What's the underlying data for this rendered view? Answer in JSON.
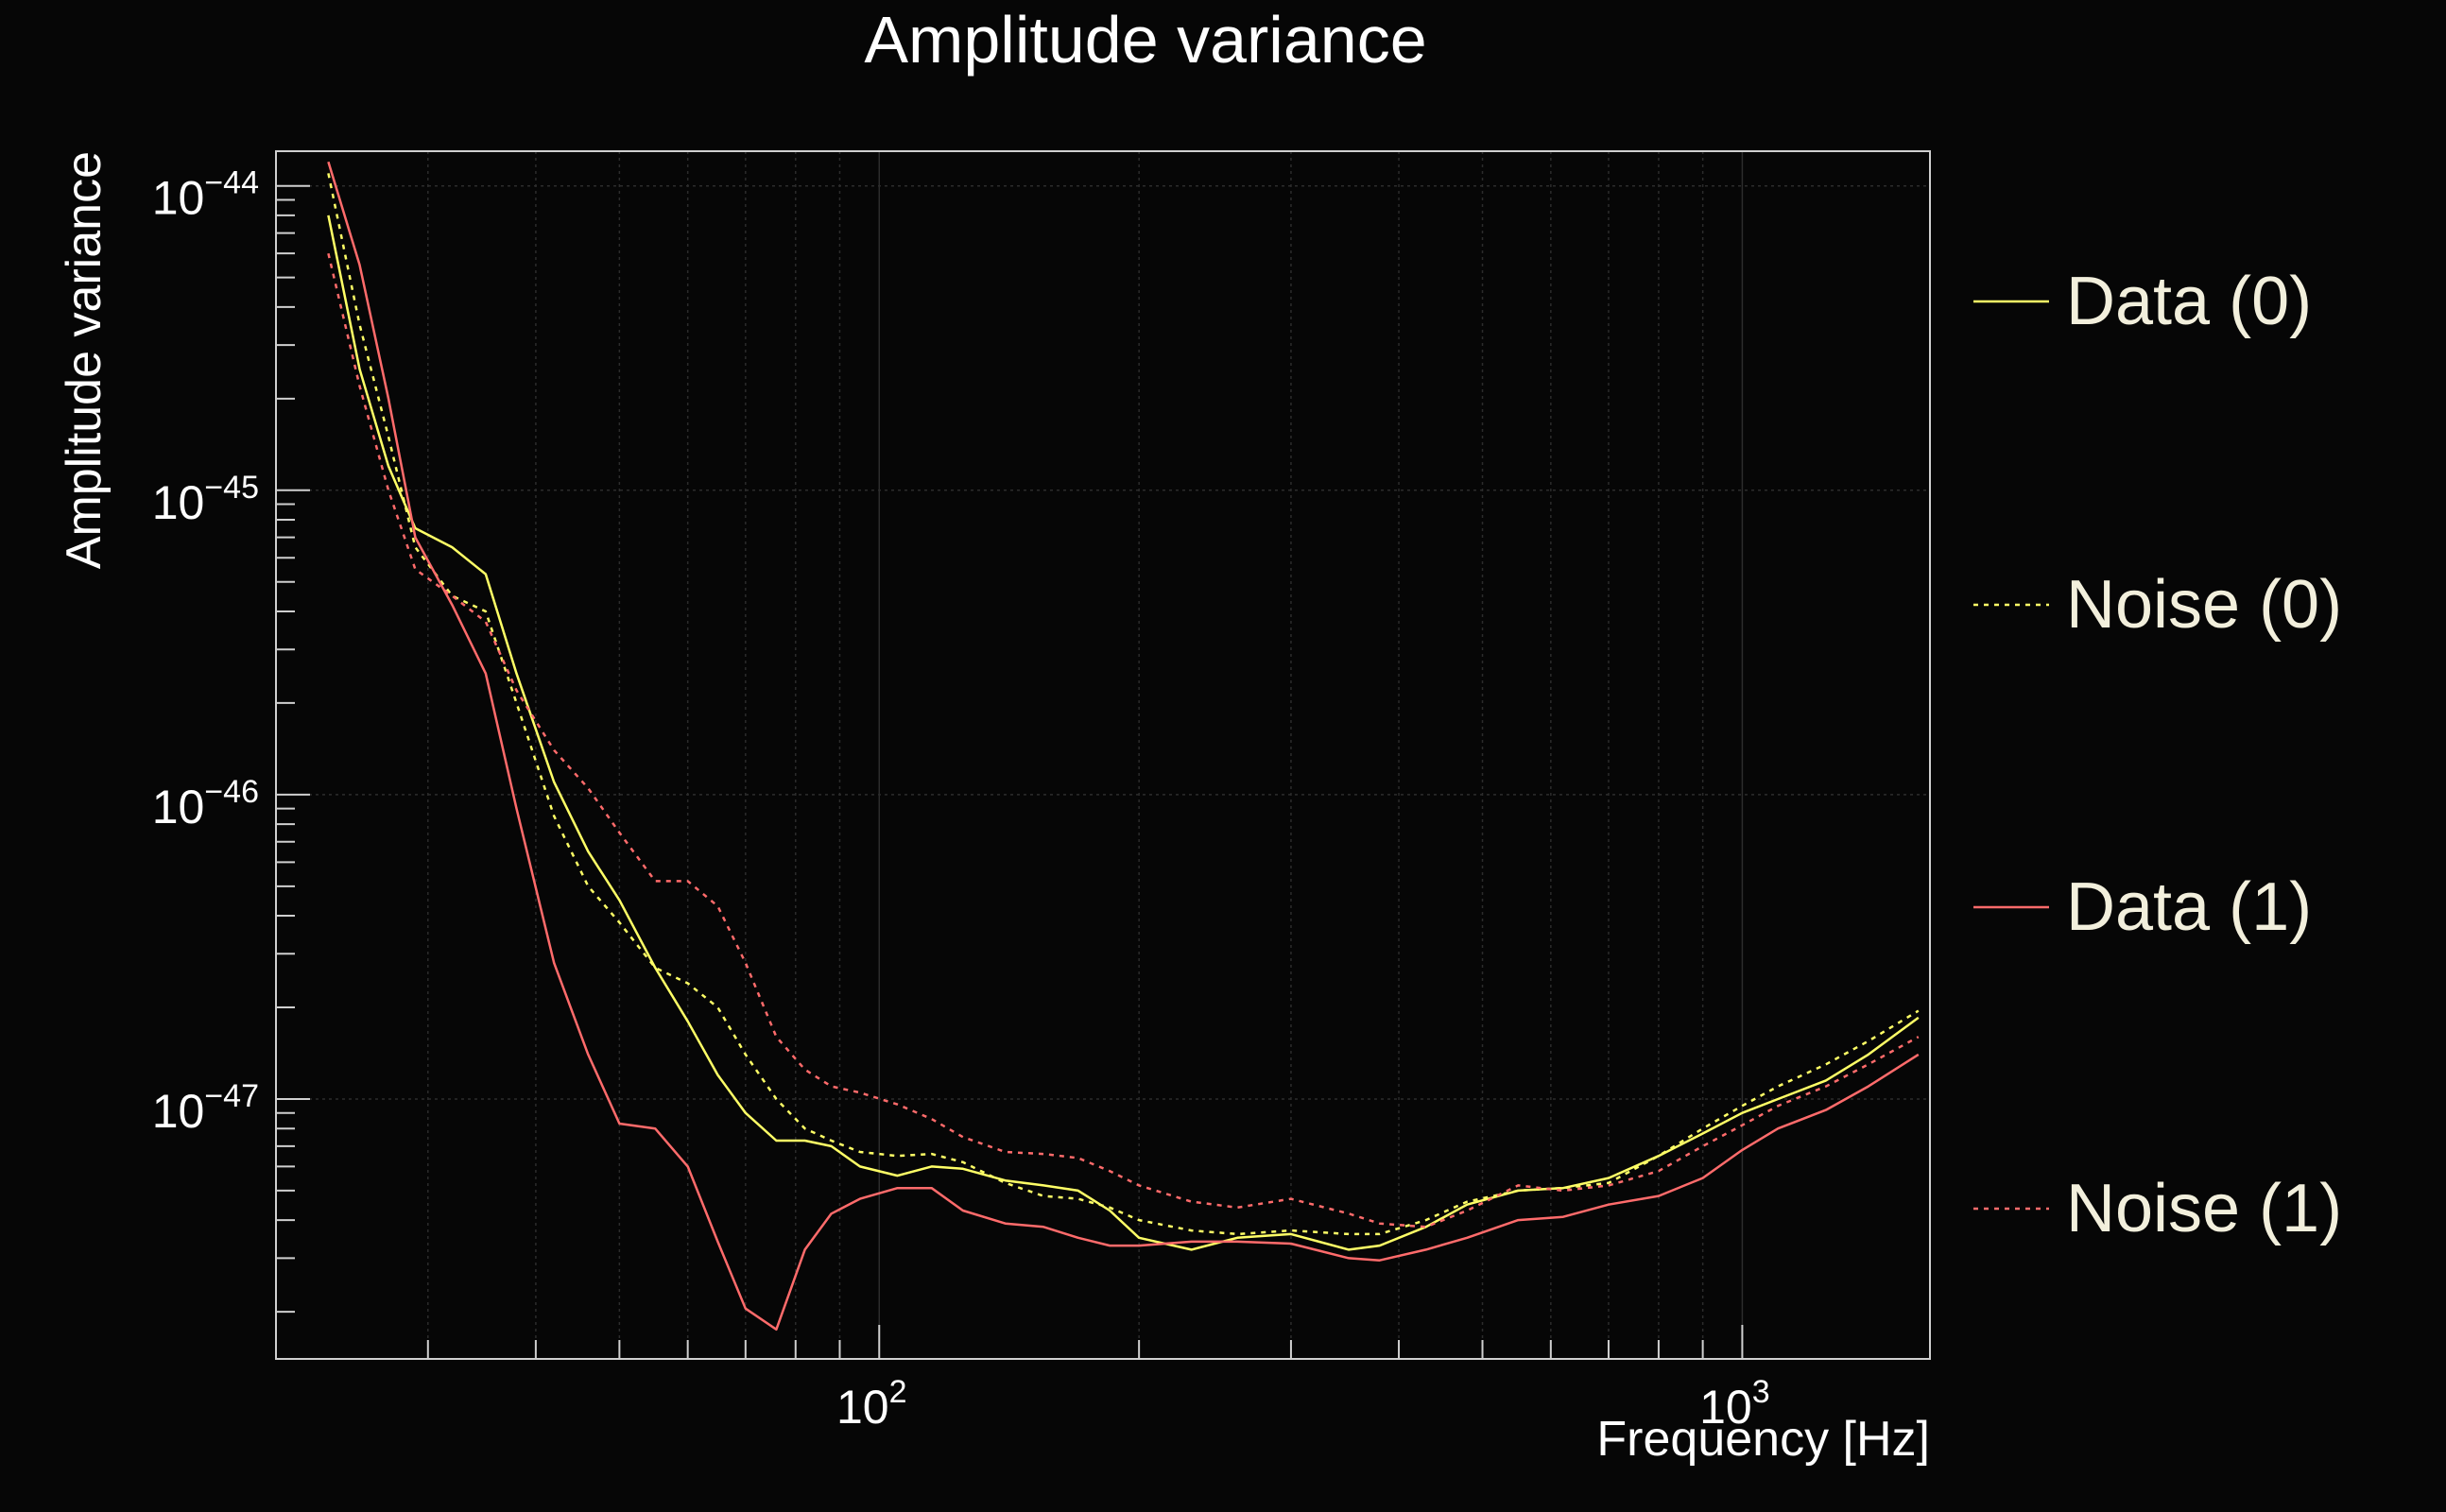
{
  "chart_data": {
    "type": "line",
    "title": "Amplitude variance",
    "xlabel": "Frequency [Hz]",
    "ylabel": "Amplitude variance",
    "x_scale": "log",
    "y_scale": "log",
    "xlim": [
      20,
      1650
    ],
    "ylim": [
      1.4e-48,
      1.3e-44
    ],
    "grid": true,
    "legend_position": "right",
    "x_ticks": [
      {
        "value": 100,
        "base": "10",
        "exp": "2"
      },
      {
        "value": 1000,
        "base": "10",
        "exp": "3"
      }
    ],
    "y_ticks": [
      {
        "value": 1e-47,
        "base": "10",
        "exp": "−47"
      },
      {
        "value": 1e-46,
        "base": "10",
        "exp": "−46"
      },
      {
        "value": 1e-45,
        "base": "10",
        "exp": "−45"
      },
      {
        "value": 1e-44,
        "base": "10",
        "exp": "−44"
      }
    ],
    "background_color": "#060606",
    "series": [
      {
        "name": "Data (0)",
        "color": "#ffff66",
        "dash": "solid",
        "x": [
          23,
          25,
          27,
          29,
          32,
          35,
          38,
          42,
          46,
          50,
          55,
          60,
          65,
          70,
          76,
          82,
          88,
          95,
          105,
          115,
          125,
          140,
          155,
          170,
          185,
          200,
          230,
          260,
          300,
          350,
          380,
          430,
          480,
          550,
          620,
          700,
          800,
          900,
          1000,
          1100,
          1250,
          1400,
          1600
        ],
        "y": [
          8e-45,
          2.5e-45,
          1.2e-45,
          7.5e-46,
          6.5e-46,
          5.3e-46,
          2.5e-46,
          1.1e-46,
          6.5e-47,
          4.5e-47,
          2.7e-47,
          1.8e-47,
          1.2e-47,
          9e-48,
          7.3e-48,
          7.3e-48,
          7e-48,
          6e-48,
          5.6e-48,
          6e-48,
          5.9e-48,
          5.4e-48,
          5.2e-48,
          5e-48,
          4.3e-48,
          3.5e-48,
          3.2e-48,
          3.5e-48,
          3.6e-48,
          3.2e-48,
          3.3e-48,
          3.8e-48,
          4.5e-48,
          5e-48,
          5.1e-48,
          5.5e-48,
          6.5e-48,
          7.7e-48,
          9e-48,
          1e-47,
          1.15e-47,
          1.4e-47,
          1.85e-47
        ]
      },
      {
        "name": "Noise (0)",
        "color": "#ffff66",
        "dash": "dotted",
        "x": [
          23,
          25,
          27,
          29,
          32,
          35,
          38,
          42,
          46,
          50,
          55,
          60,
          65,
          70,
          76,
          82,
          88,
          95,
          105,
          115,
          125,
          140,
          155,
          170,
          185,
          200,
          230,
          260,
          300,
          350,
          380,
          430,
          480,
          550,
          620,
          700,
          800,
          900,
          1000,
          1100,
          1250,
          1400,
          1600
        ],
        "y": [
          1.1e-44,
          3.5e-45,
          1.5e-45,
          6.5e-46,
          4.5e-46,
          4e-46,
          2e-46,
          8.5e-47,
          5e-47,
          3.8e-47,
          2.7e-47,
          2.4e-47,
          2e-47,
          1.4e-47,
          1e-47,
          8e-48,
          7.3e-48,
          6.7e-48,
          6.5e-48,
          6.6e-48,
          6.2e-48,
          5.3e-48,
          4.8e-48,
          4.7e-48,
          4.4e-48,
          4e-48,
          3.7e-48,
          3.6e-48,
          3.7e-48,
          3.6e-48,
          3.6e-48,
          4e-48,
          4.6e-48,
          5e-48,
          5.1e-48,
          5.3e-48,
          6.5e-48,
          8e-48,
          9.5e-48,
          1.1e-47,
          1.3e-47,
          1.55e-47,
          1.95e-47
        ]
      },
      {
        "name": "Data (1)",
        "color": "#ff6b6b",
        "dash": "solid",
        "x": [
          23,
          25,
          27,
          29,
          32,
          35,
          38,
          42,
          46,
          50,
          55,
          60,
          65,
          70,
          76,
          82,
          88,
          95,
          105,
          115,
          125,
          140,
          155,
          170,
          185,
          200,
          230,
          260,
          300,
          350,
          380,
          430,
          480,
          550,
          620,
          700,
          800,
          900,
          1000,
          1100,
          1250,
          1400,
          1600
        ],
        "y": [
          1.2e-44,
          5.5e-45,
          2e-45,
          7e-46,
          4.2e-46,
          2.5e-46,
          9e-47,
          2.8e-47,
          1.4e-47,
          8.3e-48,
          8e-48,
          6e-48,
          3.4e-48,
          2.05e-48,
          1.75e-48,
          3.2e-48,
          4.2e-48,
          4.7e-48,
          5.1e-48,
          5.1e-48,
          4.3e-48,
          3.9e-48,
          3.8e-48,
          3.5e-48,
          3.3e-48,
          3.3e-48,
          3.4e-48,
          3.4e-48,
          3.35e-48,
          3e-48,
          2.95e-48,
          3.2e-48,
          3.5e-48,
          4e-48,
          4.1e-48,
          4.5e-48,
          4.8e-48,
          5.5e-48,
          6.8e-48,
          8e-48,
          9.2e-48,
          1.1e-47,
          1.4e-47
        ]
      },
      {
        "name": "Noise (1)",
        "color": "#ff6b6b",
        "dash": "dotted",
        "x": [
          23,
          25,
          27,
          29,
          32,
          35,
          38,
          42,
          46,
          50,
          55,
          60,
          65,
          70,
          76,
          82,
          88,
          95,
          105,
          115,
          125,
          140,
          155,
          170,
          185,
          200,
          230,
          260,
          300,
          350,
          380,
          430,
          480,
          550,
          620,
          700,
          800,
          900,
          1000,
          1100,
          1250,
          1400,
          1600
        ],
        "y": [
          6e-45,
          2.2e-45,
          1e-45,
          5.5e-46,
          4.5e-46,
          3.7e-46,
          2.2e-46,
          1.4e-46,
          1.05e-46,
          7.5e-47,
          5.2e-47,
          5.2e-47,
          4.3e-47,
          2.8e-47,
          1.6e-47,
          1.25e-47,
          1.1e-47,
          1.05e-47,
          9.6e-48,
          8.6e-48,
          7.5e-48,
          6.7e-48,
          6.6e-48,
          6.4e-48,
          5.8e-48,
          5.2e-48,
          4.6e-48,
          4.4e-48,
          4.7e-48,
          4.2e-48,
          3.9e-48,
          3.8e-48,
          4.3e-48,
          5.2e-48,
          5e-48,
          5.2e-48,
          5.8e-48,
          7e-48,
          8.2e-48,
          9.5e-48,
          1.1e-47,
          1.3e-47,
          1.6e-47
        ]
      }
    ]
  }
}
